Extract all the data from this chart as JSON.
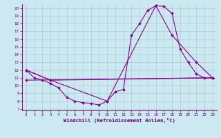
{
  "xlabel": "Windchill (Refroidissement éolien,°C)",
  "bg_color": "#cce8f0",
  "grid_color": "#aaccd8",
  "line_color": "#880088",
  "text_color": "#660066",
  "xlim": [
    -0.5,
    23.5
  ],
  "ylim": [
    6.8,
    20.5
  ],
  "xticks": [
    0,
    1,
    2,
    3,
    4,
    5,
    6,
    7,
    8,
    9,
    10,
    11,
    12,
    13,
    14,
    15,
    16,
    17,
    18,
    19,
    20,
    21,
    22,
    23
  ],
  "yticks": [
    7,
    8,
    9,
    10,
    11,
    12,
    13,
    14,
    15,
    16,
    17,
    18,
    19,
    20
  ],
  "series": [
    {
      "x": [
        0,
        1,
        2,
        3,
        4,
        5,
        6,
        7,
        8,
        9,
        10,
        11,
        12,
        13,
        14,
        15,
        16,
        17,
        18,
        19,
        20,
        21,
        22,
        23
      ],
      "y": [
        12,
        11,
        10.7,
        10.3,
        9.7,
        8.5,
        8.0,
        7.8,
        7.7,
        7.5,
        8.0,
        9.2,
        9.5,
        16.5,
        18.0,
        19.7,
        20.3,
        20.2,
        19.3,
        14.7,
        13.0,
        11.5,
        11.0,
        11.0
      ]
    },
    {
      "x": [
        0,
        3,
        10,
        16,
        18,
        21,
        23
      ],
      "y": [
        12,
        10.7,
        8.0,
        20.3,
        16.5,
        13.0,
        11.0
      ]
    },
    {
      "x": [
        0,
        3,
        23
      ],
      "y": [
        12,
        10.7,
        11.0
      ]
    },
    {
      "x": [
        0,
        23
      ],
      "y": [
        10.7,
        11.0
      ]
    }
  ]
}
